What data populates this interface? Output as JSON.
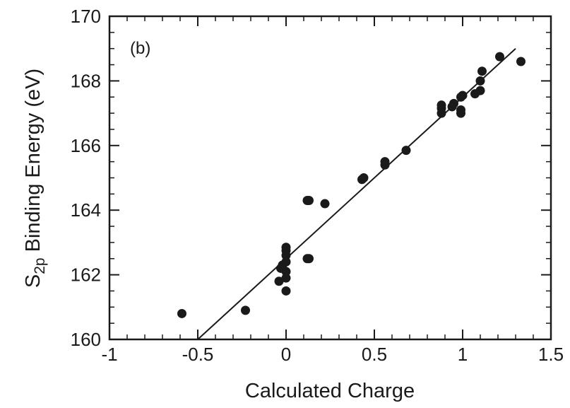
{
  "chart_data": {
    "type": "scatter",
    "panel_label": "(b)",
    "xlabel": "Calculated Charge",
    "ylabel": {
      "prefix": "S",
      "subscript": "2p",
      "rest": " Binding Energy (eV)"
    },
    "xlim": [
      -1,
      1.5
    ],
    "ylim": [
      160,
      170
    ],
    "x_ticks": [
      -1,
      -0.5,
      0,
      0.5,
      1,
      1.5
    ],
    "x_tick_labels": [
      "-1",
      "-0.5",
      "0",
      "0.5",
      "1",
      "1.5"
    ],
    "y_ticks": [
      160,
      162,
      164,
      166,
      168,
      170
    ],
    "y_tick_labels": [
      "160",
      "162",
      "164",
      "166",
      "168",
      "170"
    ],
    "x_minor_step": 0.1,
    "y_minor_step": 0.5,
    "grid": false,
    "series": [
      {
        "points": [
          [
            -0.59,
            160.8
          ],
          [
            -0.23,
            160.9
          ],
          [
            -0.04,
            161.8
          ],
          [
            -0.03,
            162.2
          ],
          [
            -0.02,
            162.3
          ],
          [
            0.0,
            161.5
          ],
          [
            0.0,
            161.9
          ],
          [
            0.0,
            162.1
          ],
          [
            0.0,
            162.4
          ],
          [
            0.0,
            162.6
          ],
          [
            0.0,
            162.75
          ],
          [
            0.0,
            162.85
          ],
          [
            0.12,
            164.3
          ],
          [
            0.13,
            164.3
          ],
          [
            0.12,
            162.5
          ],
          [
            0.13,
            162.5
          ],
          [
            0.22,
            164.2
          ],
          [
            0.43,
            164.95
          ],
          [
            0.44,
            165.0
          ],
          [
            0.56,
            165.4
          ],
          [
            0.56,
            165.5
          ],
          [
            0.68,
            165.85
          ],
          [
            0.88,
            167.0
          ],
          [
            0.88,
            167.15
          ],
          [
            0.88,
            167.25
          ],
          [
            0.94,
            167.2
          ],
          [
            0.95,
            167.3
          ],
          [
            0.99,
            167.0
          ],
          [
            0.99,
            167.1
          ],
          [
            0.99,
            167.5
          ],
          [
            1.0,
            167.55
          ],
          [
            1.07,
            167.6
          ],
          [
            1.1,
            167.7
          ],
          [
            1.1,
            168.0
          ],
          [
            1.11,
            168.3
          ],
          [
            1.21,
            168.75
          ],
          [
            1.33,
            168.6
          ]
        ]
      }
    ],
    "fit_line": {
      "x": [
        -0.5,
        1.3
      ],
      "y": [
        160.0,
        169.0
      ]
    },
    "colors": {
      "ink": "#1a1a1a",
      "background": "#ffffff"
    }
  }
}
